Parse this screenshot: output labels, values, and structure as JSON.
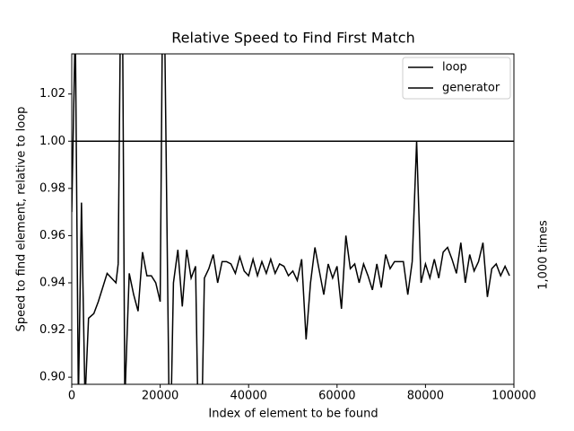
{
  "chart_data": {
    "type": "line",
    "title": "Relative Speed to Find First Match",
    "xlabel": "Index of element to be found",
    "ylabel": "Speed to find element, relative to loop",
    "annotation": "1,000 times",
    "xlim": [
      0,
      100000
    ],
    "ylim": [
      0.897,
      1.037
    ],
    "xticks": [
      0,
      20000,
      40000,
      60000,
      80000,
      100000
    ],
    "yticks": [
      {
        "value": 0.9,
        "label": "0.90"
      },
      {
        "value": 0.92,
        "label": "0.92"
      },
      {
        "value": 0.94,
        "label": "0.94"
      },
      {
        "value": 0.96,
        "label": "0.96"
      },
      {
        "value": 0.98,
        "label": "0.98"
      },
      {
        "value": 1.0,
        "label": "1.00"
      },
      {
        "value": 1.02,
        "label": "1.02"
      }
    ],
    "legend": "upper right",
    "series": [
      {
        "name": "loop",
        "color": "#000000",
        "x": [
          0,
          100000
        ],
        "values": [
          1.0,
          1.0
        ]
      },
      {
        "name": "generator",
        "color": "#000000",
        "x": [
          0,
          800,
          1500,
          2200,
          3000,
          3800,
          5000,
          6000,
          7000,
          8000,
          9000,
          10000,
          10500,
          11000,
          11500,
          12000,
          13000,
          14000,
          15000,
          16000,
          17000,
          18000,
          19000,
          20000,
          20500,
          21000,
          22000,
          22500,
          23000,
          24000,
          25000,
          26000,
          27000,
          28000,
          28500,
          29500,
          30000,
          31000,
          32000,
          33000,
          34000,
          35000,
          36000,
          37000,
          38000,
          39000,
          40000,
          41000,
          42000,
          43000,
          44000,
          45000,
          46000,
          47000,
          48000,
          49000,
          50000,
          51000,
          52000,
          53000,
          54000,
          55000,
          56000,
          57000,
          58000,
          59000,
          60000,
          61000,
          62000,
          63000,
          64000,
          65000,
          66000,
          67000,
          68000,
          69000,
          70000,
          71000,
          72000,
          73000,
          74000,
          75000,
          76000,
          77000,
          78000,
          79000,
          80000,
          81000,
          82000,
          83000,
          84000,
          85000,
          86000,
          87000,
          88000,
          89000,
          90000,
          91000,
          92000,
          93000,
          94000,
          95000,
          96000,
          97000,
          98000,
          99000
        ],
        "values": [
          0.97,
          1.05,
          0.89,
          0.974,
          0.89,
          0.925,
          0.927,
          0.932,
          0.938,
          0.944,
          0.942,
          0.94,
          0.948,
          1.05,
          1.05,
          0.89,
          0.944,
          0.935,
          0.928,
          0.953,
          0.943,
          0.943,
          0.94,
          0.932,
          1.05,
          1.05,
          0.89,
          0.89,
          0.94,
          0.954,
          0.93,
          0.954,
          0.942,
          0.947,
          0.89,
          0.89,
          0.942,
          0.946,
          0.952,
          0.94,
          0.949,
          0.949,
          0.948,
          0.944,
          0.951,
          0.945,
          0.943,
          0.95,
          0.943,
          0.949,
          0.944,
          0.95,
          0.944,
          0.948,
          0.947,
          0.943,
          0.945,
          0.941,
          0.95,
          0.916,
          0.94,
          0.955,
          0.945,
          0.935,
          0.948,
          0.942,
          0.947,
          0.929,
          0.96,
          0.946,
          0.948,
          0.94,
          0.948,
          0.943,
          0.937,
          0.948,
          0.938,
          0.952,
          0.946,
          0.949,
          0.949,
          0.949,
          0.935,
          0.949,
          1.0,
          0.94,
          0.948,
          0.942,
          0.95,
          0.942,
          0.953,
          0.955,
          0.95,
          0.944,
          0.957,
          0.94,
          0.952,
          0.945,
          0.949,
          0.957,
          0.934,
          0.946,
          0.948,
          0.943,
          0.947,
          0.943
        ]
      }
    ]
  }
}
